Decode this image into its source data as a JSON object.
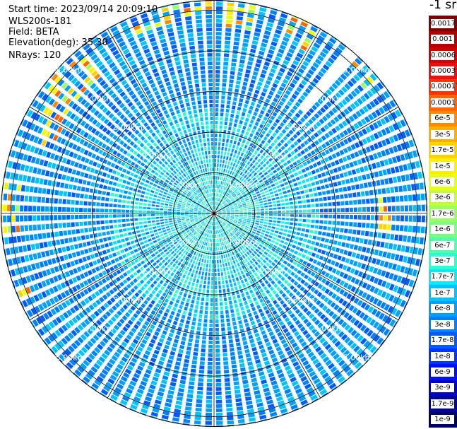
{
  "header": {
    "start_time": "Start time: 2023/09/14 20:09:10",
    "device": "WLS200s-181",
    "field": "Field: BETA",
    "elevation": "Elevation(deg): 35.30",
    "nrays": "NRays: 120"
  },
  "colorbar": {
    "unit": "-1 sr",
    "labels": [
      "0.0017",
      "0.001",
      "0.0006",
      "0.0003",
      "0.00017",
      "0.0001",
      "6e-5",
      "3e-5",
      "1.7e-5",
      "1e-5",
      "6e-6",
      "3e-6",
      "1.7e-6",
      "1e-6",
      "6e-7",
      "3e-7",
      "1.7e-7",
      "1e-7",
      "6e-8",
      "3e-8",
      "1.7e-8",
      "1e-8",
      "6e-9",
      "3e-9",
      "1.7e-9",
      "1e-9"
    ],
    "colors": [
      "#7f0000",
      "#b40000",
      "#d40000",
      "#ee1010",
      "#ff3200",
      "#ff6400",
      "#ff8a00",
      "#ffae00",
      "#ffd200",
      "#fff000",
      "#e8ff10",
      "#c4ff36",
      "#9cff60",
      "#78ff80",
      "#50ffaa",
      "#2cffd2",
      "#10e8f8",
      "#00c4ff",
      "#00a0ff",
      "#0080ff",
      "#005cff",
      "#0034ff",
      "#0010f0",
      "#0000c8",
      "#00009a",
      "#00006a"
    ]
  },
  "ppi": {
    "ring_labels": [
      "1.00km",
      "2.00km",
      "3.00km",
      "4.00km",
      "5.00km"
    ],
    "ring_km": [
      1,
      2,
      3,
      4,
      5
    ],
    "max_range_km": 5
  }
}
